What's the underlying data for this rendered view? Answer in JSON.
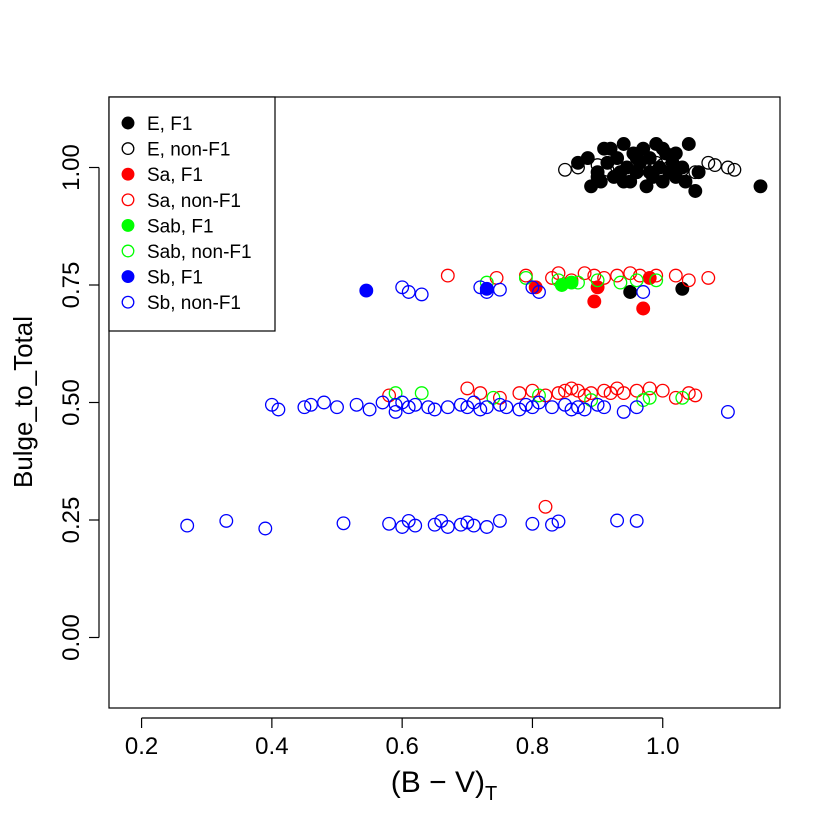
{
  "chart_data": {
    "type": "scatter",
    "title": "",
    "xlabel_main": "(B − V)",
    "xlabel_sub": "T",
    "ylabel": "Bulge_to_Total",
    "xlim": [
      0.15,
      1.18
    ],
    "ylim": [
      -0.15,
      1.15
    ],
    "xticks": [
      0.2,
      0.4,
      0.6,
      0.8,
      1.0
    ],
    "xtick_labels": [
      "0.2",
      "0.4",
      "0.6",
      "0.8",
      "1.0"
    ],
    "yticks": [
      0.0,
      0.25,
      0.5,
      0.75,
      1.0
    ],
    "ytick_labels": [
      "0.00",
      "0.25",
      "0.50",
      "0.75",
      "1.00"
    ],
    "grid": false,
    "legend_position": "top-left",
    "series": [
      {
        "name": "E, F1",
        "color": "#000000",
        "filled": true,
        "points": [
          [
            0.87,
            1.01
          ],
          [
            0.885,
            1.02
          ],
          [
            0.89,
            0.96
          ],
          [
            0.9,
            0.99
          ],
          [
            0.905,
            0.97
          ],
          [
            0.91,
            1.04
          ],
          [
            0.915,
            1.01
          ],
          [
            0.92,
            1.04
          ],
          [
            0.925,
            0.98
          ],
          [
            0.93,
            1.02
          ],
          [
            0.935,
            0.99
          ],
          [
            0.94,
            1.05
          ],
          [
            0.945,
            1.0
          ],
          [
            0.95,
            0.97
          ],
          [
            0.955,
            1.03
          ],
          [
            0.96,
            0.99
          ],
          [
            0.965,
            1.01
          ],
          [
            0.97,
            1.04
          ],
          [
            0.975,
            0.96
          ],
          [
            0.98,
            1.02
          ],
          [
            0.985,
            0.98
          ],
          [
            0.99,
            1.05
          ],
          [
            0.995,
            1.0
          ],
          [
            1.0,
            0.97
          ],
          [
            1.005,
            1.03
          ],
          [
            1.01,
            0.99
          ],
          [
            1.015,
            1.01
          ],
          [
            1.02,
            0.98
          ],
          [
            1.03,
            1.0
          ],
          [
            1.035,
            0.97
          ],
          [
            1.04,
            1.05
          ],
          [
            1.05,
            0.95
          ],
          [
            1.055,
            0.99
          ],
          [
            1.15,
            0.96
          ],
          [
            0.9,
            0.98
          ],
          [
            0.94,
            0.97
          ],
          [
            0.96,
            1.02
          ],
          [
            0.98,
            0.99
          ],
          [
            1.0,
            1.04
          ],
          [
            1.02,
            1.03
          ],
          [
            0.95,
            0.735
          ],
          [
            1.03,
            0.742
          ]
        ]
      },
      {
        "name": "E, non-F1",
        "color": "#000000",
        "filled": false,
        "points": [
          [
            0.85,
            0.995
          ],
          [
            0.87,
            1.0
          ],
          [
            0.9,
            1.005
          ],
          [
            0.915,
            0.995
          ],
          [
            0.93,
            1.0
          ],
          [
            0.96,
            0.99
          ],
          [
            0.99,
            1.01
          ],
          [
            1.01,
            1.0
          ],
          [
            1.03,
            0.995
          ],
          [
            1.05,
            0.99
          ],
          [
            1.07,
            1.01
          ],
          [
            1.08,
            1.005
          ],
          [
            1.1,
            1.0
          ],
          [
            1.11,
            0.995
          ],
          [
            0.985,
            0.995
          ],
          [
            1.0,
            1.005
          ]
        ]
      },
      {
        "name": "Sa, F1",
        "color": "#ff0000",
        "filled": true,
        "points": [
          [
            0.805,
            0.745
          ],
          [
            0.895,
            0.715
          ],
          [
            0.9,
            0.745
          ],
          [
            0.97,
            0.7
          ],
          [
            0.98,
            0.765
          ]
        ]
      },
      {
        "name": "Sa, non-F1",
        "color": "#ff0000",
        "filled": false,
        "points": [
          [
            0.67,
            0.77
          ],
          [
            0.745,
            0.765
          ],
          [
            0.79,
            0.77
          ],
          [
            0.83,
            0.765
          ],
          [
            0.84,
            0.775
          ],
          [
            0.86,
            0.76
          ],
          [
            0.88,
            0.775
          ],
          [
            0.895,
            0.77
          ],
          [
            0.91,
            0.765
          ],
          [
            0.93,
            0.77
          ],
          [
            0.95,
            0.775
          ],
          [
            0.965,
            0.77
          ],
          [
            0.99,
            0.77
          ],
          [
            1.02,
            0.77
          ],
          [
            1.04,
            0.76
          ],
          [
            1.07,
            0.765
          ],
          [
            0.58,
            0.515
          ],
          [
            0.7,
            0.53
          ],
          [
            0.72,
            0.52
          ],
          [
            0.75,
            0.51
          ],
          [
            0.78,
            0.52
          ],
          [
            0.8,
            0.525
          ],
          [
            0.82,
            0.515
          ],
          [
            0.84,
            0.52
          ],
          [
            0.85,
            0.525
          ],
          [
            0.86,
            0.53
          ],
          [
            0.87,
            0.525
          ],
          [
            0.88,
            0.515
          ],
          [
            0.89,
            0.52
          ],
          [
            0.91,
            0.525
          ],
          [
            0.92,
            0.52
          ],
          [
            0.93,
            0.53
          ],
          [
            0.94,
            0.52
          ],
          [
            0.96,
            0.525
          ],
          [
            0.98,
            0.53
          ],
          [
            1.0,
            0.525
          ],
          [
            1.02,
            0.51
          ],
          [
            1.04,
            0.52
          ],
          [
            1.05,
            0.515
          ],
          [
            0.82,
            0.278
          ]
        ]
      },
      {
        "name": "Sab, F1",
        "color": "#00ff00",
        "filled": true,
        "points": [
          [
            0.845,
            0.75
          ],
          [
            0.86,
            0.755
          ]
        ]
      },
      {
        "name": "Sab, non-F1",
        "color": "#00ff00",
        "filled": false,
        "points": [
          [
            0.73,
            0.755
          ],
          [
            0.79,
            0.765
          ],
          [
            0.84,
            0.76
          ],
          [
            0.87,
            0.755
          ],
          [
            0.9,
            0.76
          ],
          [
            0.935,
            0.755
          ],
          [
            0.96,
            0.76
          ],
          [
            0.99,
            0.76
          ],
          [
            0.59,
            0.52
          ],
          [
            0.63,
            0.52
          ],
          [
            0.74,
            0.51
          ],
          [
            0.81,
            0.515
          ],
          [
            0.89,
            0.505
          ],
          [
            0.97,
            0.505
          ],
          [
            0.98,
            0.51
          ],
          [
            1.03,
            0.51
          ]
        ]
      },
      {
        "name": "Sb, F1",
        "color": "#0000ff",
        "filled": true,
        "points": [
          [
            0.545,
            0.738
          ],
          [
            0.73,
            0.742
          ]
        ]
      },
      {
        "name": "Sb, non-F1",
        "color": "#0000ff",
        "filled": false,
        "points": [
          [
            0.6,
            0.745
          ],
          [
            0.61,
            0.735
          ],
          [
            0.63,
            0.73
          ],
          [
            0.72,
            0.745
          ],
          [
            0.73,
            0.735
          ],
          [
            0.75,
            0.74
          ],
          [
            0.8,
            0.745
          ],
          [
            0.81,
            0.735
          ],
          [
            0.97,
            0.735
          ],
          [
            0.4,
            0.495
          ],
          [
            0.41,
            0.485
          ],
          [
            0.45,
            0.49
          ],
          [
            0.46,
            0.495
          ],
          [
            0.48,
            0.5
          ],
          [
            0.5,
            0.49
          ],
          [
            0.53,
            0.495
          ],
          [
            0.55,
            0.485
          ],
          [
            0.57,
            0.5
          ],
          [
            0.59,
            0.495
          ],
          [
            0.59,
            0.48
          ],
          [
            0.6,
            0.5
          ],
          [
            0.61,
            0.49
          ],
          [
            0.62,
            0.495
          ],
          [
            0.64,
            0.49
          ],
          [
            0.65,
            0.485
          ],
          [
            0.67,
            0.49
          ],
          [
            0.69,
            0.495
          ],
          [
            0.7,
            0.49
          ],
          [
            0.71,
            0.5
          ],
          [
            0.72,
            0.485
          ],
          [
            0.73,
            0.49
          ],
          [
            0.75,
            0.495
          ],
          [
            0.76,
            0.49
          ],
          [
            0.78,
            0.485
          ],
          [
            0.79,
            0.495
          ],
          [
            0.8,
            0.49
          ],
          [
            0.81,
            0.5
          ],
          [
            0.83,
            0.49
          ],
          [
            0.85,
            0.495
          ],
          [
            0.86,
            0.485
          ],
          [
            0.87,
            0.49
          ],
          [
            0.88,
            0.485
          ],
          [
            0.9,
            0.495
          ],
          [
            0.91,
            0.49
          ],
          [
            0.94,
            0.48
          ],
          [
            0.96,
            0.49
          ],
          [
            1.1,
            0.48
          ],
          [
            0.27,
            0.238
          ],
          [
            0.33,
            0.248
          ],
          [
            0.39,
            0.232
          ],
          [
            0.51,
            0.243
          ],
          [
            0.58,
            0.242
          ],
          [
            0.6,
            0.235
          ],
          [
            0.61,
            0.248
          ],
          [
            0.62,
            0.238
          ],
          [
            0.65,
            0.24
          ],
          [
            0.66,
            0.248
          ],
          [
            0.67,
            0.235
          ],
          [
            0.69,
            0.24
          ],
          [
            0.7,
            0.245
          ],
          [
            0.71,
            0.238
          ],
          [
            0.73,
            0.235
          ],
          [
            0.75,
            0.248
          ],
          [
            0.8,
            0.242
          ],
          [
            0.83,
            0.24
          ],
          [
            0.84,
            0.247
          ],
          [
            0.93,
            0.249
          ],
          [
            0.96,
            0.248
          ]
        ]
      }
    ]
  }
}
